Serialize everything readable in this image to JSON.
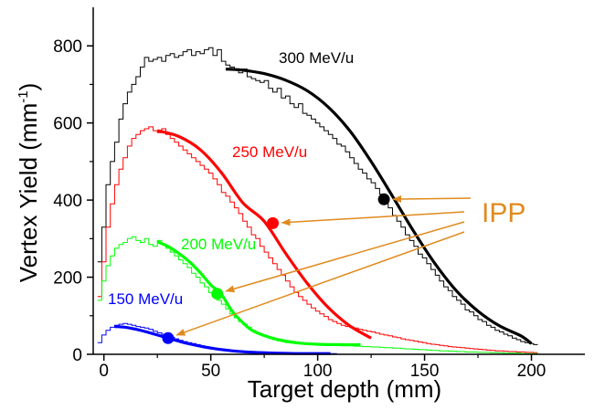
{
  "chart_data": {
    "type": "line",
    "xlabel": "Target depth (mm)",
    "ylabel_main": "Vertex Yield (mm",
    "ylabel_sup": "-1",
    "ylabel_close": ")",
    "xlim": [
      -5,
      225
    ],
    "ylim": [
      0,
      900
    ],
    "xticks": [
      0,
      50,
      100,
      150,
      200
    ],
    "yticks": [
      0,
      200,
      400,
      600,
      800
    ],
    "ipp_label": "IPP",
    "ipp_color": "#e08a1e",
    "series": [
      {
        "name": "300 MeV/u",
        "color": "#000000",
        "histogram_x": [
          -3,
          -1,
          1,
          3,
          5,
          7,
          9,
          11,
          13,
          15,
          17,
          19,
          21,
          23,
          25,
          27,
          29,
          31,
          33,
          35,
          37,
          39,
          41,
          43,
          45,
          47,
          49,
          51,
          53,
          55,
          57,
          59,
          61,
          63,
          65,
          67,
          69,
          71,
          73,
          75,
          77,
          79,
          81,
          83,
          85,
          87,
          89,
          91,
          93,
          95,
          97,
          99,
          101,
          103,
          105,
          107,
          109,
          111,
          113,
          115,
          117,
          119,
          121,
          123,
          125,
          127,
          129,
          131,
          133,
          135,
          137,
          139,
          141,
          143,
          145,
          147,
          149,
          151,
          153,
          155,
          157,
          159,
          161,
          163,
          165,
          167,
          169,
          171,
          173,
          175,
          177,
          179,
          181,
          183,
          185,
          187,
          189,
          191,
          193,
          195,
          197,
          199,
          201
        ],
        "histogram_y": [
          240,
          330,
          440,
          500,
          550,
          610,
          650,
          680,
          700,
          720,
          745,
          770,
          760,
          765,
          770,
          760,
          775,
          780,
          770,
          775,
          785,
          790,
          775,
          785,
          780,
          790,
          795,
          775,
          790,
          760,
          750,
          745,
          740,
          730,
          740,
          720,
          715,
          710,
          705,
          710,
          690,
          680,
          690,
          665,
          670,
          650,
          640,
          650,
          625,
          620,
          610,
          600,
          590,
          580,
          570,
          560,
          545,
          540,
          525,
          510,
          495,
          480,
          470,
          455,
          445,
          430,
          415,
          400,
          380,
          360,
          345,
          330,
          310,
          295,
          280,
          260,
          250,
          235,
          220,
          205,
          190,
          175,
          165,
          150,
          140,
          130,
          115,
          110,
          100,
          90,
          85,
          75,
          70,
          62,
          58,
          52,
          48,
          42,
          38,
          33,
          30,
          28,
          25
        ],
        "fit_x": [
          57,
          65,
          75,
          85,
          95,
          105,
          115,
          125,
          135,
          145,
          155,
          165,
          175,
          185,
          195,
          200
        ],
        "fit_y": [
          740,
          737,
          728,
          711,
          684,
          641,
          580,
          500,
          410,
          318,
          234,
          164,
          112,
          74,
          48,
          28
        ],
        "ipp": {
          "x": 131,
          "y": 402
        }
      },
      {
        "name": "250 MeV/u",
        "color": "#ff0000",
        "histogram_x": [
          -3,
          -1,
          1,
          3,
          5,
          7,
          9,
          11,
          13,
          15,
          17,
          19,
          21,
          23,
          25,
          27,
          29,
          31,
          33,
          35,
          37,
          39,
          41,
          43,
          45,
          47,
          49,
          51,
          53,
          55,
          57,
          59,
          61,
          63,
          65,
          67,
          69,
          71,
          73,
          75,
          77,
          79,
          81,
          83,
          85,
          87,
          89,
          91,
          93,
          95,
          97,
          99,
          101,
          103,
          105,
          107,
          109,
          111,
          113,
          115,
          117,
          119,
          121,
          123,
          125,
          127,
          129,
          131,
          133,
          135,
          137,
          139,
          141,
          143,
          145,
          147,
          149,
          151,
          153,
          155,
          157,
          159,
          161,
          163,
          165,
          167,
          169,
          171,
          173,
          175,
          177,
          179,
          181,
          183,
          185,
          187,
          189,
          191,
          193,
          195,
          197,
          199,
          201
        ],
        "histogram_y": [
          150,
          240,
          330,
          390,
          440,
          480,
          510,
          540,
          560,
          570,
          580,
          585,
          590,
          580,
          575,
          585,
          570,
          560,
          550,
          540,
          530,
          520,
          510,
          500,
          490,
          480,
          470,
          455,
          440,
          420,
          410,
          395,
          380,
          365,
          345,
          330,
          310,
          300,
          280,
          265,
          250,
          235,
          220,
          205,
          190,
          175,
          160,
          150,
          140,
          130,
          120,
          112,
          105,
          98,
          90,
          85,
          80,
          75,
          72,
          70,
          68,
          65,
          62,
          60,
          58,
          55,
          52,
          50,
          48,
          45,
          43,
          40,
          38,
          36,
          34,
          32,
          30,
          28,
          26,
          25,
          23,
          22,
          20,
          19,
          18,
          17,
          16,
          15,
          14,
          13,
          12,
          11,
          10,
          9,
          9,
          8,
          7,
          7,
          6,
          6,
          5,
          5,
          4
        ],
        "fit_x": [
          25,
          35,
          45,
          55,
          65,
          75,
          85,
          95,
          105,
          115,
          125
        ],
        "fit_y": [
          580,
          565,
          531,
          471,
          393,
          345,
          262,
          185,
          121,
          74,
          42
        ],
        "ipp": {
          "x": 79,
          "y": 340
        }
      },
      {
        "name": "200 MeV/u",
        "color": "#00ff00",
        "histogram_x": [
          -3,
          -1,
          1,
          3,
          5,
          7,
          9,
          11,
          13,
          15,
          17,
          19,
          21,
          23,
          25,
          27,
          29,
          31,
          33,
          35,
          37,
          39,
          41,
          43,
          45,
          47,
          49,
          51,
          53,
          55,
          57,
          59,
          61,
          63,
          65,
          67,
          69,
          71,
          73,
          75,
          77,
          79,
          81,
          83,
          85,
          87,
          89,
          91,
          93,
          95,
          97,
          99,
          101,
          103,
          105,
          107,
          109,
          111,
          113,
          115,
          117,
          119,
          121,
          123,
          125,
          127,
          129,
          131,
          133,
          135,
          137,
          139,
          141,
          143,
          145,
          147,
          149,
          151,
          153,
          155,
          157,
          159,
          161,
          163,
          165,
          167,
          169,
          171,
          173,
          175,
          177,
          179,
          181,
          183,
          185,
          187,
          189,
          191,
          193,
          195,
          197,
          199,
          201
        ],
        "histogram_y": [
          140,
          190,
          230,
          255,
          275,
          285,
          290,
          300,
          305,
          295,
          290,
          300,
          285,
          280,
          295,
          285,
          275,
          265,
          255,
          245,
          235,
          225,
          210,
          200,
          185,
          175,
          160,
          150,
          140,
          130,
          118,
          105,
          95,
          85,
          78,
          70,
          62,
          56,
          50,
          46,
          42,
          38,
          35,
          33,
          30,
          29,
          28,
          27,
          26,
          26,
          25,
          25,
          25,
          24,
          24,
          23,
          23,
          22,
          22,
          22,
          21,
          21,
          20,
          20,
          19,
          19,
          18,
          17,
          17,
          16,
          16,
          15,
          14,
          14,
          13,
          12,
          12,
          11,
          10,
          10,
          9,
          9,
          8,
          8,
          7,
          7,
          6,
          6,
          6,
          5,
          5,
          5,
          4,
          4,
          4,
          3,
          3,
          3,
          3,
          2,
          2,
          2,
          2
        ],
        "fit_x": [
          25,
          30,
          35,
          40,
          45,
          50,
          55,
          60,
          65,
          70,
          80,
          90,
          100,
          110,
          120
        ],
        "fit_y": [
          292,
          280,
          262,
          240,
          212,
          180,
          155,
          112,
          82,
          60,
          40,
          30,
          26,
          25,
          25
        ],
        "ipp": {
          "x": 53,
          "y": 157
        }
      },
      {
        "name": "150 MeV/u",
        "color": "#0000ff",
        "histogram_x": [
          -3,
          -1,
          1,
          3,
          5,
          7,
          9,
          11,
          13,
          15,
          17,
          19,
          21,
          23,
          25,
          27,
          29,
          31,
          33,
          35,
          37,
          39,
          41,
          43,
          45,
          47,
          49,
          51,
          53,
          55,
          57,
          59,
          61,
          63,
          65,
          67,
          69,
          71,
          73,
          75,
          77,
          79,
          81,
          83,
          85,
          87,
          89,
          91,
          93,
          95,
          97,
          99,
          101,
          103,
          105,
          107
        ],
        "histogram_y": [
          30,
          50,
          62,
          70,
          75,
          78,
          80,
          78,
          75,
          72,
          70,
          68,
          65,
          60,
          56,
          52,
          48,
          44,
          40,
          36,
          33,
          30,
          28,
          25,
          22,
          20,
          18,
          16,
          14,
          12,
          10,
          9,
          8,
          7,
          6,
          5,
          4,
          4,
          3,
          3,
          2,
          2,
          2,
          2,
          2,
          2,
          2,
          2,
          2,
          2,
          2,
          2,
          2,
          2,
          2,
          2
        ],
        "fit_x": [
          5,
          10,
          15,
          20,
          25,
          30,
          35,
          40,
          50,
          60,
          70,
          80,
          90,
          100,
          106
        ],
        "fit_y": [
          72,
          70,
          65,
          58,
          50,
          42,
          34,
          27,
          16,
          9,
          5,
          3,
          2,
          2,
          2
        ],
        "ipp": {
          "x": 30,
          "y": 42
        }
      }
    ]
  }
}
